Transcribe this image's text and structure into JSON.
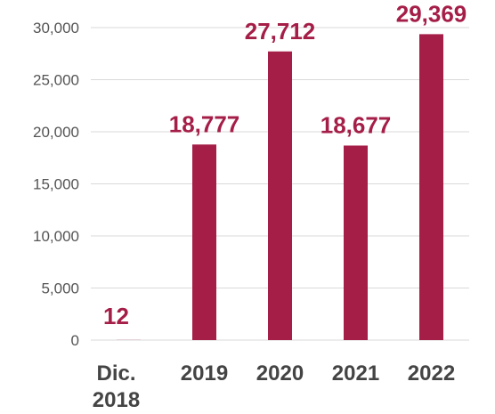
{
  "chart_data": {
    "type": "bar",
    "title": "",
    "xlabel": "",
    "ylabel": "",
    "categories": [
      [
        "Dic.",
        "2018"
      ],
      [
        "2019"
      ],
      [
        "2020"
      ],
      [
        "2021"
      ],
      [
        "2022"
      ]
    ],
    "values": [
      12,
      18777,
      27712,
      18677,
      29369
    ],
    "data_labels": [
      "12",
      "18,777",
      "27,712",
      "18,677",
      "29,369"
    ],
    "ylim": [
      0,
      30000
    ],
    "yticks": [
      0,
      5000,
      10000,
      15000,
      20000,
      25000,
      30000
    ],
    "ytick_labels": [
      "0",
      "5,000",
      "10,000",
      "15,000",
      "20,000",
      "25,000",
      "30,000"
    ],
    "grid": true,
    "legend": "none",
    "colors": {
      "bar": "#A51E48",
      "label": "#A51E48",
      "grid": "#D9D9D9"
    }
  }
}
